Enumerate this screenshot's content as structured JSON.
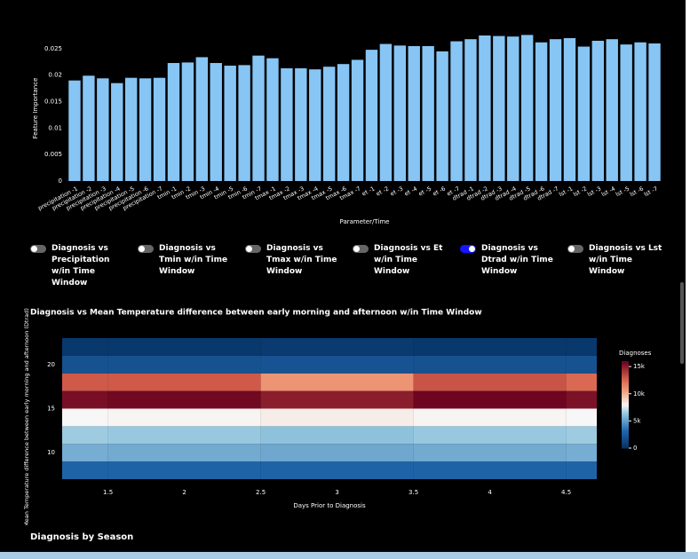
{
  "chart_data": [
    {
      "type": "bar",
      "y_label": "Feature Importance",
      "x_label": "Parameter/Time",
      "categories": [
        "precipitation -1",
        "precipitation -2",
        "precipitation -3",
        "precipitation -4",
        "precipitation -5",
        "precipitation -6",
        "precipitation -7",
        "tmin -1",
        "tmin -2",
        "tmin -3",
        "tmin -4",
        "tmin -5",
        "tmin -6",
        "tmin -7",
        "tmax -1",
        "tmax -2",
        "tmax -3",
        "tmax -4",
        "tmax -5",
        "tmax -6",
        "tmax -7",
        "et -1",
        "et -2",
        "et -3",
        "et -4",
        "et -5",
        "et -6",
        "et -7",
        "dtrad -1",
        "dtrad -2",
        "dtrad -3",
        "dtrad -4",
        "dtrad -5",
        "dtrad -6",
        "dtrad -7",
        "lst -1",
        "lst -2",
        "lst -3",
        "lst -4",
        "lst -5",
        "lst -6",
        "lst -7"
      ],
      "values": [
        0.019,
        0.0199,
        0.0194,
        0.0185,
        0.0195,
        0.0194,
        0.0195,
        0.0223,
        0.0224,
        0.0234,
        0.0223,
        0.0218,
        0.0219,
        0.0237,
        0.0232,
        0.0213,
        0.0213,
        0.0211,
        0.0216,
        0.0221,
        0.0229,
        0.0248,
        0.0259,
        0.0256,
        0.0255,
        0.0255,
        0.0245,
        0.0264,
        0.0268,
        0.0275,
        0.0274,
        0.0273,
        0.0276,
        0.0262,
        0.0268,
        0.027,
        0.0254,
        0.0265,
        0.0268,
        0.0258,
        0.0262,
        0.026
      ],
      "color": "#87c5f5",
      "ylim": [
        0,
        0.0275
      ],
      "yticks": [
        0,
        0.005,
        0.01,
        0.015,
        0.02,
        0.025
      ]
    },
    {
      "type": "heatmap",
      "title": "Diagnosis vs Mean Temperature difference between early morning and afternoon w/in Time Window",
      "y_label": "Mean Temperature difference between early morning and afternoon (Dtrad)",
      "x_label": "Days Prior to Diagnosis",
      "x": [
        1,
        2,
        3,
        4,
        5
      ],
      "y": [
        8,
        10,
        12,
        14,
        16,
        18,
        20,
        22
      ],
      "z": [
        [
          3000,
          3000,
          3000,
          3000,
          3000
        ],
        [
          5600,
          5500,
          5400,
          5500,
          5600
        ],
        [
          6600,
          6500,
          6300,
          6500,
          6600
        ],
        [
          8000,
          8100,
          8300,
          8100,
          8000
        ],
        [
          15500,
          15700,
          15000,
          15800,
          15400
        ],
        [
          13000,
          13000,
          11000,
          13200,
          12500
        ],
        [
          2000,
          2000,
          2100,
          2000,
          2000
        ],
        [
          500,
          500,
          600,
          500,
          500
        ]
      ],
      "xlim": [
        1.2,
        4.7
      ],
      "xticks": [
        1.5,
        2,
        2.5,
        3,
        3.5,
        4,
        4.5
      ],
      "ylim": [
        7,
        23
      ],
      "yticks": [
        10,
        15,
        20
      ],
      "colorbar_title": "Diagnoses",
      "zlim": [
        0,
        16000
      ],
      "zticks": [
        0,
        {
          "value": 5000,
          "label": "5k"
        },
        {
          "value": 10000,
          "label": "10k"
        },
        {
          "value": 15000,
          "label": "15k"
        }
      ]
    }
  ],
  "toggles": [
    {
      "label": "Diagnosis vs Precipitation w/in Time Window",
      "on": false
    },
    {
      "label": "Diagnosis vs Tmin w/in Time Window",
      "on": false
    },
    {
      "label": "Diagnosis vs Tmax w/in Time Window",
      "on": false
    },
    {
      "label": "Diagnosis vs Et w/in Time Window",
      "on": false
    },
    {
      "label": "Diagnosis vs Dtrad w/in Time Window",
      "on": true
    },
    {
      "label": "Diagnosis vs Lst w/in Time Window",
      "on": false
    }
  ],
  "section_title": "Diagnosis by Season"
}
